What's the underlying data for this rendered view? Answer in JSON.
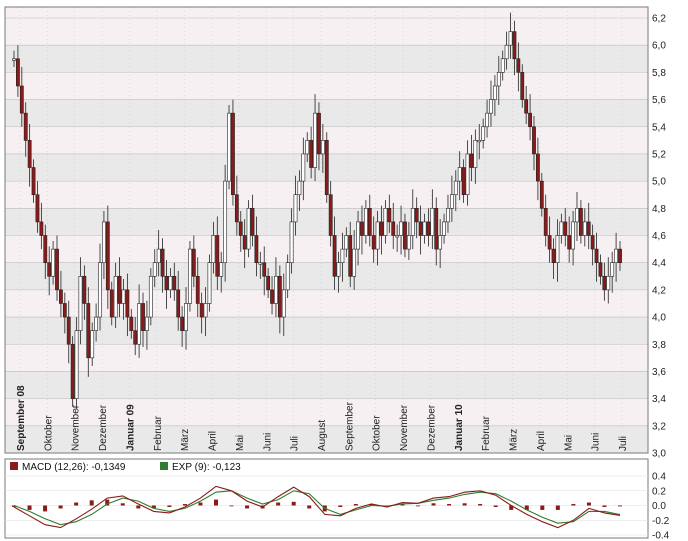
{
  "colors": {
    "band_light": "#f6f0f3",
    "band_dark": "#e9e9e9",
    "grid": "#bdbdbd",
    "frame": "#7a7a7a",
    "candle_down": "#8b1a1a",
    "candle_up": "#ffffff",
    "macd_line": "#8b1a1a",
    "exp_line": "#2f7d2f",
    "histogram": "#8b1a1a"
  },
  "chart_data": [
    {
      "type": "candlestick",
      "ylim": [
        3.0,
        6.2
      ],
      "y_ticks": [
        "6,2",
        "6,0",
        "5,8",
        "5,6",
        "5,4",
        "5,2",
        "5,0",
        "4,8",
        "4,6",
        "4,4",
        "4,2",
        "4,0",
        "3,8",
        "3,6",
        "3,4",
        "3,2",
        "3,0"
      ],
      "x_labels": [
        {
          "label": "September 08",
          "bold": true
        },
        {
          "label": "Oktober",
          "bold": false
        },
        {
          "label": "November",
          "bold": false
        },
        {
          "label": "Dezember",
          "bold": false
        },
        {
          "label": "Januar 09",
          "bold": true
        },
        {
          "label": "Februar",
          "bold": false
        },
        {
          "label": "März",
          "bold": false
        },
        {
          "label": "April",
          "bold": false
        },
        {
          "label": "Mai",
          "bold": false
        },
        {
          "label": "Juni",
          "bold": false
        },
        {
          "label": "Juli",
          "bold": false
        },
        {
          "label": "August",
          "bold": false
        },
        {
          "label": "September",
          "bold": false
        },
        {
          "label": "Oktober",
          "bold": false
        },
        {
          "label": "November",
          "bold": false
        },
        {
          "label": "Dezember",
          "bold": false
        },
        {
          "label": "Januar 10",
          "bold": true
        },
        {
          "label": "Februar",
          "bold": false
        },
        {
          "label": "März",
          "bold": false
        },
        {
          "label": "April",
          "bold": false
        },
        {
          "label": "Mai",
          "bold": false
        },
        {
          "label": "Juni",
          "bold": false
        },
        {
          "label": "Juli",
          "bold": false
        }
      ],
      "series": [
        {
          "month": "September 08",
          "close": [
            5.9,
            5.7,
            5.5,
            5.3,
            5.1,
            4.9,
            4.7
          ]
        },
        {
          "month": "Oktober",
          "close": [
            4.6,
            4.4,
            4.3,
            4.5,
            4.2,
            4.1,
            4.0
          ]
        },
        {
          "month": "November",
          "close": [
            3.8,
            3.4,
            3.9,
            4.3,
            4.1,
            3.7,
            3.9
          ]
        },
        {
          "month": "Dezember",
          "close": [
            4.0,
            4.4,
            4.7,
            4.2,
            4.0,
            4.3,
            4.1
          ]
        },
        {
          "month": "Januar 09",
          "close": [
            4.2,
            4.0,
            3.9,
            3.8,
            4.1,
            3.9,
            4.0
          ]
        },
        {
          "month": "Februar",
          "close": [
            4.3,
            4.4,
            4.5,
            4.3,
            4.2,
            4.3,
            4.2
          ]
        },
        {
          "month": "März",
          "close": [
            4.0,
            3.9,
            4.1,
            4.5,
            4.3,
            4.1,
            4.0
          ]
        },
        {
          "month": "April",
          "close": [
            4.1,
            4.4,
            4.6,
            4.3,
            4.4,
            5.0,
            5.5
          ]
        },
        {
          "month": "Mai",
          "close": [
            4.9,
            4.7,
            4.6,
            4.5,
            4.8,
            4.6,
            4.4
          ]
        },
        {
          "month": "Juni",
          "close": [
            4.4,
            4.3,
            4.2,
            4.1,
            4.3,
            4.0,
            4.2
          ]
        },
        {
          "month": "Juli",
          "close": [
            4.4,
            4.7,
            4.9,
            5.0,
            5.2,
            5.3,
            5.1
          ]
        },
        {
          "month": "August",
          "close": [
            5.5,
            5.2,
            5.3,
            4.9,
            4.6,
            4.3,
            4.4
          ]
        },
        {
          "month": "September",
          "close": [
            4.5,
            4.6,
            4.3,
            4.5,
            4.7,
            4.6,
            4.8
          ]
        },
        {
          "month": "Oktober",
          "close": [
            4.6,
            4.5,
            4.7,
            4.6,
            4.8,
            4.7,
            4.6
          ]
        },
        {
          "month": "November",
          "close": [
            4.6,
            4.7,
            4.5,
            4.6,
            4.8,
            4.7,
            4.6
          ]
        },
        {
          "month": "Dezember",
          "close": [
            4.7,
            4.6,
            4.8,
            4.5,
            4.6,
            4.7,
            4.8
          ]
        },
        {
          "month": "Januar 10",
          "close": [
            4.9,
            5.0,
            5.1,
            4.9,
            5.2,
            5.1,
            5.3
          ]
        },
        {
          "month": "Februar",
          "close": [
            5.3,
            5.4,
            5.5,
            5.6,
            5.7,
            5.8,
            5.9
          ]
        },
        {
          "month": "März",
          "close": [
            6.0,
            6.1,
            5.9,
            5.8,
            5.6,
            5.5,
            5.4
          ]
        },
        {
          "month": "April",
          "close": [
            5.2,
            5.0,
            4.8,
            4.6,
            4.5,
            4.4,
            4.6
          ]
        },
        {
          "month": "Mai",
          "close": [
            4.7,
            4.6,
            4.5,
            4.7,
            4.8,
            4.6,
            4.7
          ]
        },
        {
          "month": "Juni",
          "close": [
            4.6,
            4.5,
            4.4,
            4.3,
            4.2,
            4.3,
            4.4
          ]
        },
        {
          "month": "Juli",
          "close": [
            4.5,
            4.4
          ]
        }
      ]
    },
    {
      "type": "line",
      "ylim": [
        -0.4,
        0.4
      ],
      "y_ticks": [
        "0.4",
        "0.2",
        "0.0",
        "-0.2",
        "-0.4"
      ],
      "legend": [
        {
          "label": "MACD (12,26): -0,1349",
          "color": "#8b1a1a"
        },
        {
          "label": "EXP (9): -0,123",
          "color": "#2f7d2f"
        }
      ],
      "series": [
        {
          "name": "MACD (12,26)",
          "values": [
            -0.02,
            -0.14,
            -0.26,
            -0.3,
            -0.18,
            -0.05,
            0.1,
            0.13,
            0.02,
            -0.08,
            -0.1,
            -0.02,
            0.1,
            0.26,
            0.2,
            0.06,
            -0.02,
            0.12,
            0.25,
            0.12,
            -0.12,
            -0.14,
            -0.04,
            0.02,
            -0.02,
            0.04,
            0.03,
            0.1,
            0.12,
            0.18,
            0.2,
            0.14,
            0.0,
            -0.12,
            -0.22,
            -0.3,
            -0.2,
            -0.04,
            -0.1,
            -0.1349
          ]
        },
        {
          "name": "EXP (9)",
          "values": [
            0.0,
            -0.08,
            -0.18,
            -0.26,
            -0.22,
            -0.12,
            0.02,
            0.1,
            0.06,
            -0.04,
            -0.08,
            -0.04,
            0.06,
            0.18,
            0.2,
            0.1,
            0.02,
            0.08,
            0.2,
            0.16,
            -0.04,
            -0.12,
            -0.06,
            0.0,
            -0.01,
            0.02,
            0.03,
            0.07,
            0.1,
            0.15,
            0.18,
            0.16,
            0.06,
            -0.06,
            -0.16,
            -0.24,
            -0.22,
            -0.08,
            -0.08,
            -0.123
          ]
        }
      ]
    }
  ]
}
